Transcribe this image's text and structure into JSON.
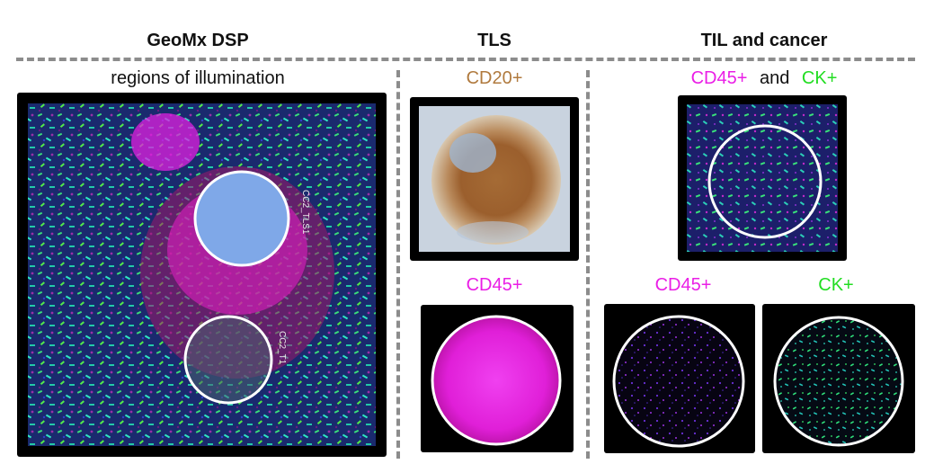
{
  "headers": {
    "geomx": "GeoMx DSP",
    "tls": "TLS",
    "til": "TIL and cancer"
  },
  "labels": {
    "regions": "regions of illumination",
    "cd20": "CD20+",
    "cd45_tls": "CD45+",
    "cd45_and": "CD45+",
    "and_word": "and",
    "ck_and": "CK+",
    "cd45_til": "CD45+",
    "ck_til": "CK+"
  },
  "roi_labels": {
    "tls": "CC2_TLS1",
    "tumor": "CC2_T1"
  },
  "colors": {
    "magenta": "#ea1ee6",
    "green": "#22dd22",
    "brown": "#b07a3e",
    "dash": "#8c8c8c"
  }
}
